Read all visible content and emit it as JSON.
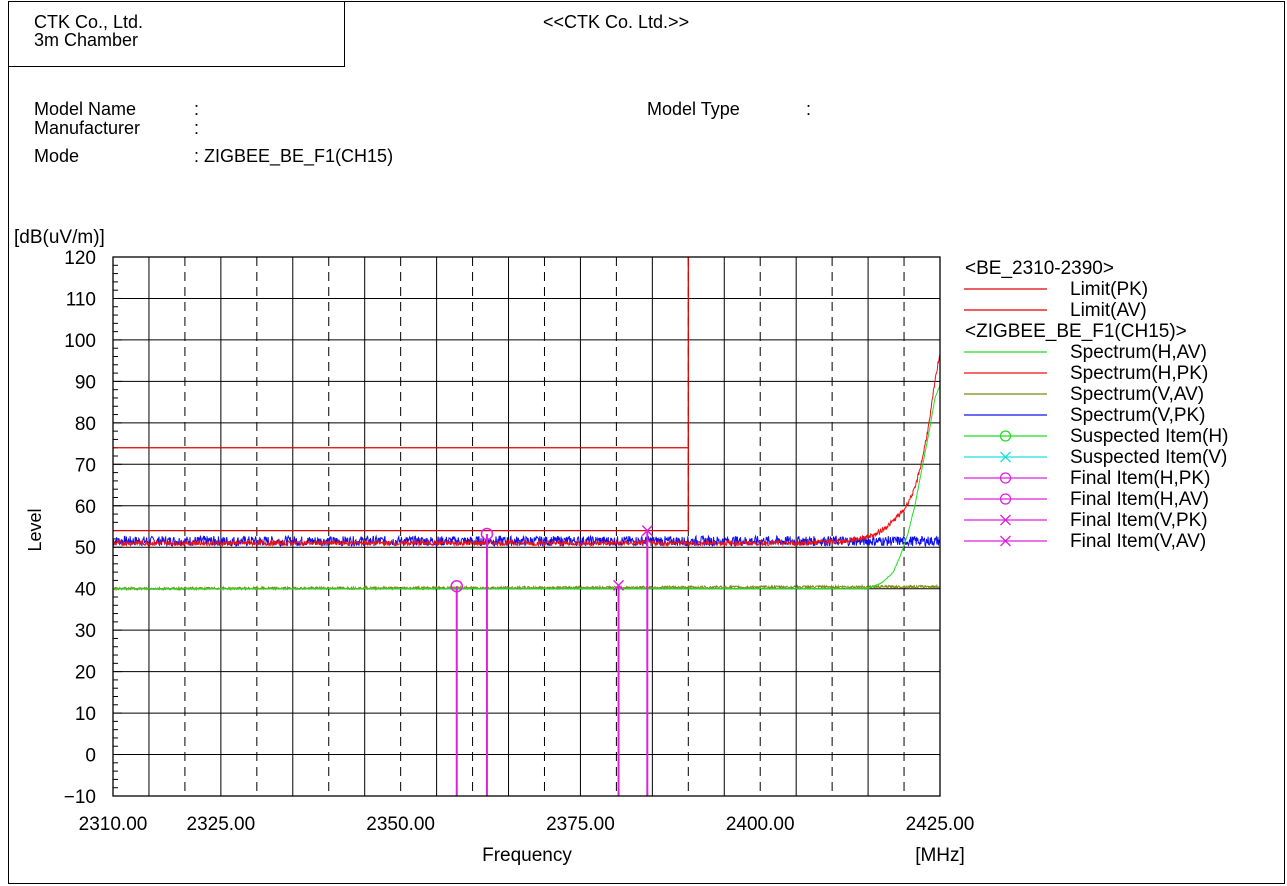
{
  "header": {
    "company_line1": "CTK Co., Ltd.",
    "company_line2": "3m Chamber",
    "center_title": "<<CTK Co. Ltd.>>"
  },
  "info": {
    "model_name_label": "Model Name",
    "model_name_sep": ":",
    "manufacturer_label": "Manufacturer",
    "manufacturer_sep": ":",
    "mode_label": "Mode",
    "mode_value": ": ZIGBEE_BE_F1(CH15)",
    "model_type_label": "Model Type",
    "model_type_sep": ":"
  },
  "colors": {
    "limit": "#e00000",
    "spectrum_h_av": "#22dd22",
    "spectrum_h_pk": "#ee1111",
    "spectrum_v_av": "#7a8a10",
    "spectrum_v_pk": "#1010ee",
    "suspected_h": "#22dd22",
    "suspected_v": "#22dddd",
    "final": "#dd22dd"
  },
  "chart_data": {
    "type": "line",
    "ylabel": "Level",
    "yunit": "[dB(uV/m)]",
    "xlabel": "Frequency",
    "xunit": "[MHz]",
    "xlim": [
      2310,
      2425
    ],
    "ylim": [
      -10,
      120
    ],
    "yticks": [
      "120",
      "110",
      "100",
      "90",
      "80",
      "70",
      "60",
      "50",
      "40",
      "30",
      "20",
      "10",
      "0",
      "−10"
    ],
    "ytick_values": [
      120,
      110,
      100,
      90,
      80,
      70,
      60,
      50,
      40,
      30,
      20,
      10,
      0,
      -10
    ],
    "xticks": [
      "2310.00",
      "2325.00",
      "2350.00",
      "2375.00",
      "2400.00",
      "2425.00"
    ],
    "xtick_values": [
      2310,
      2325,
      2350,
      2375,
      2400,
      2425
    ],
    "grid": true,
    "legend_position": "right",
    "legend": {
      "group1": "<BE_2310-2390>",
      "group2": "<ZIGBEE_BE_F1(CH15)>",
      "items": [
        {
          "label": "Limit(PK)",
          "color": "#e00000",
          "marker": "none",
          "group": 1
        },
        {
          "label": "Limit(AV)",
          "color": "#e00000",
          "marker": "none",
          "group": 1
        },
        {
          "label": "Spectrum(H,AV)",
          "color": "#22dd22",
          "marker": "none",
          "group": 2
        },
        {
          "label": "Spectrum(H,PK)",
          "color": "#ee1111",
          "marker": "none",
          "group": 2
        },
        {
          "label": "Spectrum(V,AV)",
          "color": "#7a8a10",
          "marker": "none",
          "group": 2
        },
        {
          "label": "Spectrum(V,PK)",
          "color": "#1010ee",
          "marker": "none",
          "group": 2
        },
        {
          "label": "Suspected Item(H)",
          "color": "#22dd22",
          "marker": "circle",
          "group": 2
        },
        {
          "label": "Suspected Item(V)",
          "color": "#22dddd",
          "marker": "x",
          "group": 2
        },
        {
          "label": "Final Item(H,PK)",
          "color": "#dd22dd",
          "marker": "circle",
          "group": 2
        },
        {
          "label": "Final Item(H,AV)",
          "color": "#dd22dd",
          "marker": "circle",
          "group": 2
        },
        {
          "label": "Final Item(V,PK)",
          "color": "#dd22dd",
          "marker": "x",
          "group": 2
        },
        {
          "label": "Final Item(V,AV)",
          "color": "#dd22dd",
          "marker": "x",
          "group": 2
        }
      ]
    },
    "limits": [
      {
        "name": "Limit(PK)",
        "x": [
          2310,
          2390
        ],
        "y": 74.0,
        "vertical_to": 120
      },
      {
        "name": "Limit(AV)",
        "x": [
          2310,
          2390
        ],
        "y": 54.0
      }
    ],
    "series": [
      {
        "name": "Spectrum(V,PK)",
        "x": [
          2310,
          2420,
          2425
        ],
        "y": [
          51.5,
          51.5,
          51.5
        ],
        "noise": 1.2
      },
      {
        "name": "Spectrum(H,PK)",
        "x": [
          2310,
          2405,
          2412,
          2416,
          2418,
          2420,
          2421.5,
          2422.5,
          2423.5,
          2424.3,
          2425
        ],
        "y": [
          51,
          51,
          51.5,
          53,
          55.5,
          59,
          64,
          71,
          80,
          90,
          97
        ],
        "noise": 0.6
      },
      {
        "name": "Spectrum(V,AV)",
        "x": [
          2310,
          2425
        ],
        "y": [
          40.0,
          40.5
        ],
        "noise": 0.3
      },
      {
        "name": "Spectrum(H,AV)",
        "x": [
          2310,
          2415,
          2417,
          2418.5,
          2419.5,
          2420.5,
          2421.5,
          2422.5,
          2423.5,
          2424.3,
          2425
        ],
        "y": [
          40,
          40,
          41.5,
          44,
          48,
          53,
          60,
          69,
          78,
          86,
          89
        ],
        "noise": 0.1
      }
    ],
    "final_items": [
      {
        "name": "Final Item(H,AV)",
        "x": 2357.8,
        "y": 40.6,
        "marker": "circle"
      },
      {
        "name": "Final Item(H,PK)",
        "x": 2362.0,
        "y": 53.2,
        "marker": "circle"
      },
      {
        "name": "Final Item(V,AV)",
        "x": 2380.3,
        "y": 40.8,
        "marker": "x"
      },
      {
        "name": "Final Item(V,PK)",
        "x": 2384.3,
        "y": 54.0,
        "marker": "x"
      }
    ]
  }
}
